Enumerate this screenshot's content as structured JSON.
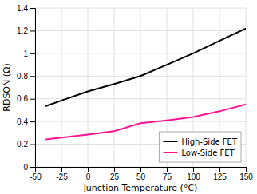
{
  "chart_data": {
    "type": "line",
    "xlabel": "Junction Temperature (°C)",
    "ylabel": "RDSON (Ω)",
    "x": [
      -40,
      -25,
      0,
      25,
      50,
      75,
      100,
      125,
      150
    ],
    "series": [
      {
        "name": "High-Side FET",
        "color": "#000000",
        "values": [
          0.535,
          0.585,
          0.665,
          0.73,
          0.8,
          0.9,
          1.0,
          1.11,
          1.22
        ]
      },
      {
        "name": "Low-Side FET",
        "color": "#ff1493",
        "values": [
          0.242,
          0.258,
          0.285,
          0.315,
          0.385,
          0.41,
          0.44,
          0.49,
          0.55
        ]
      }
    ],
    "xlim": [
      -50,
      150
    ],
    "ylim": [
      0,
      1.4
    ],
    "xticks": [
      -50,
      -25,
      0,
      25,
      50,
      75,
      100,
      125,
      150
    ],
    "yticks": [
      0,
      0.2,
      0.4,
      0.6,
      0.8,
      1,
      1.2,
      1.4
    ],
    "grid": true,
    "legend": "lower right"
  }
}
